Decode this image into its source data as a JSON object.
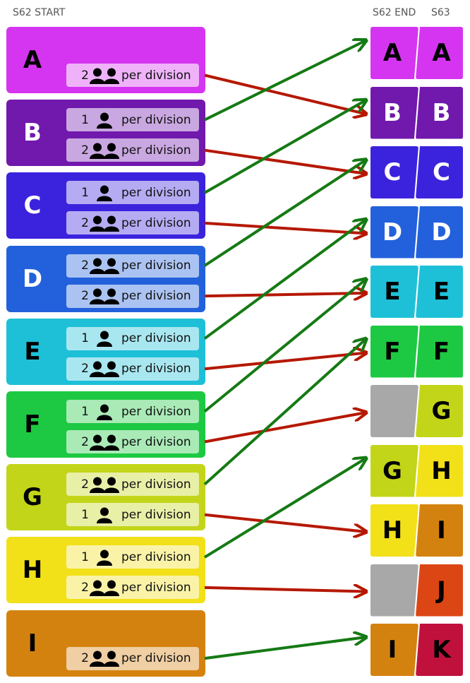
{
  "headers": {
    "left": "S62 START",
    "right_end": "S62 END",
    "right_next": "S63"
  },
  "per_division_text": "per division",
  "colors": {
    "A": "#d535f0",
    "B": "#7118ad",
    "C": "#3b23dd",
    "D": "#2361dc",
    "E": "#1ec0d8",
    "F": "#1dc942",
    "G": "#c3d518",
    "H": "#f2e019",
    "I": "#d4820f",
    "J": "#dc4614",
    "K": "#c0113c",
    "empty": "#a8a8a8",
    "advance_arrow": "#157a14",
    "drop_arrow": "#b51800"
  },
  "left_teams": [
    {
      "letter": "A",
      "color": "#d535f0",
      "text_color": "#000000",
      "chips": [
        {
          "count": "2",
          "icon": "two-people-icon"
        }
      ]
    },
    {
      "letter": "B",
      "color": "#7118ad",
      "text_color": "#ffffff",
      "chips": [
        {
          "count": "1",
          "icon": "person-icon"
        },
        {
          "count": "2",
          "icon": "two-people-icon"
        }
      ]
    },
    {
      "letter": "C",
      "color": "#3b23dd",
      "text_color": "#ffffff",
      "chips": [
        {
          "count": "1",
          "icon": "person-icon"
        },
        {
          "count": "2",
          "icon": "two-people-icon"
        }
      ]
    },
    {
      "letter": "D",
      "color": "#2361dc",
      "text_color": "#ffffff",
      "chips": [
        {
          "count": "2",
          "icon": "two-people-icon"
        },
        {
          "count": "2",
          "icon": "two-people-icon"
        }
      ]
    },
    {
      "letter": "E",
      "color": "#1ec0d8",
      "text_color": "#000000",
      "chips": [
        {
          "count": "1",
          "icon": "person-icon"
        },
        {
          "count": "2",
          "icon": "two-people-icon"
        }
      ]
    },
    {
      "letter": "F",
      "color": "#1dc942",
      "text_color": "#000000",
      "chips": [
        {
          "count": "1",
          "icon": "person-icon"
        },
        {
          "count": "2",
          "icon": "two-people-icon"
        }
      ]
    },
    {
      "letter": "G",
      "color": "#c3d518",
      "text_color": "#000000",
      "chips": [
        {
          "count": "2",
          "icon": "two-people-icon"
        },
        {
          "count": "1",
          "icon": "person-icon"
        }
      ]
    },
    {
      "letter": "H",
      "color": "#f2e019",
      "text_color": "#000000",
      "chips": [
        {
          "count": "1",
          "icon": "person-icon"
        },
        {
          "count": "2",
          "icon": "two-people-icon"
        }
      ]
    },
    {
      "letter": "I",
      "color": "#d4820f",
      "text_color": "#000000",
      "chips": [
        {
          "count": "2",
          "icon": "two-people-icon"
        }
      ]
    }
  ],
  "right_rows": [
    {
      "end": "A",
      "next": "A"
    },
    {
      "end": "B",
      "next": "B"
    },
    {
      "end": "C",
      "next": "C"
    },
    {
      "end": "D",
      "next": "D"
    },
    {
      "end": "E",
      "next": "E"
    },
    {
      "end": "F",
      "next": "F"
    },
    {
      "end": "",
      "next": "G"
    },
    {
      "end": "G",
      "next": "H"
    },
    {
      "end": "H",
      "next": "I"
    },
    {
      "end": "",
      "next": "J"
    },
    {
      "end": "I",
      "next": "K"
    }
  ],
  "arrows": [
    {
      "from_team": "A",
      "chip": 0,
      "to_row": 1,
      "kind": "drop"
    },
    {
      "from_team": "B",
      "chip": 0,
      "to_row": 0,
      "kind": "advance"
    },
    {
      "from_team": "B",
      "chip": 1,
      "to_row": 2,
      "kind": "drop"
    },
    {
      "from_team": "C",
      "chip": 0,
      "to_row": 1,
      "kind": "advance"
    },
    {
      "from_team": "C",
      "chip": 1,
      "to_row": 3,
      "kind": "drop"
    },
    {
      "from_team": "D",
      "chip": 0,
      "to_row": 2,
      "kind": "advance"
    },
    {
      "from_team": "D",
      "chip": 1,
      "to_row": 4,
      "kind": "drop"
    },
    {
      "from_team": "E",
      "chip": 0,
      "to_row": 3,
      "kind": "advance"
    },
    {
      "from_team": "E",
      "chip": 1,
      "to_row": 5,
      "kind": "drop"
    },
    {
      "from_team": "F",
      "chip": 0,
      "to_row": 4,
      "kind": "advance"
    },
    {
      "from_team": "F",
      "chip": 1,
      "to_row": 6,
      "kind": "drop"
    },
    {
      "from_team": "G",
      "chip": 0,
      "to_row": 5,
      "kind": "advance"
    },
    {
      "from_team": "G",
      "chip": 1,
      "to_row": 8,
      "kind": "drop"
    },
    {
      "from_team": "H",
      "chip": 0,
      "to_row": 7,
      "kind": "advance"
    },
    {
      "from_team": "H",
      "chip": 1,
      "to_row": 9,
      "kind": "drop"
    },
    {
      "from_team": "I",
      "chip": 0,
      "to_row": 10,
      "kind": "advance"
    }
  ]
}
